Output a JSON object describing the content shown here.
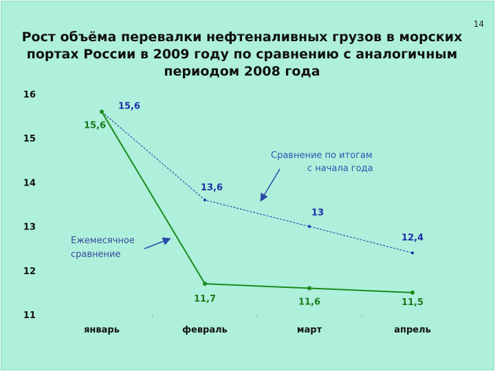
{
  "page_number": "14",
  "title": "Рост объёма перевалки нефтеналивных грузов в морских\nпортах России в 2009 году по сравнению с аналогичным\nпериодом 2008 года",
  "chart_data": {
    "type": "line",
    "categories": [
      "январь",
      "февраль",
      "март",
      "апрель"
    ],
    "ylim": [
      11,
      16
    ],
    "yticks": [
      "11",
      "12",
      "13",
      "14",
      "15",
      "16"
    ],
    "series": [
      {
        "color": "#1c2fa8",
        "style": "dashed",
        "values": [
          15.6,
          13.6,
          13,
          12.4
        ],
        "labels": [
          "15,6",
          "13,6",
          "13",
          "12,4"
        ]
      },
      {
        "color": "#1a8a1a",
        "style": "solid",
        "values": [
          15.6,
          11.7,
          11.6,
          11.5
        ],
        "labels": [
          "15,6",
          "11,7",
          "11,6",
          "11,5"
        ]
      }
    ],
    "annotations": {
      "cumulative": [
        "Сравнение  по итогам",
        "с начала года"
      ],
      "monthly": [
        "Ежемесячное",
        "сравнение"
      ]
    },
    "grid": false
  }
}
